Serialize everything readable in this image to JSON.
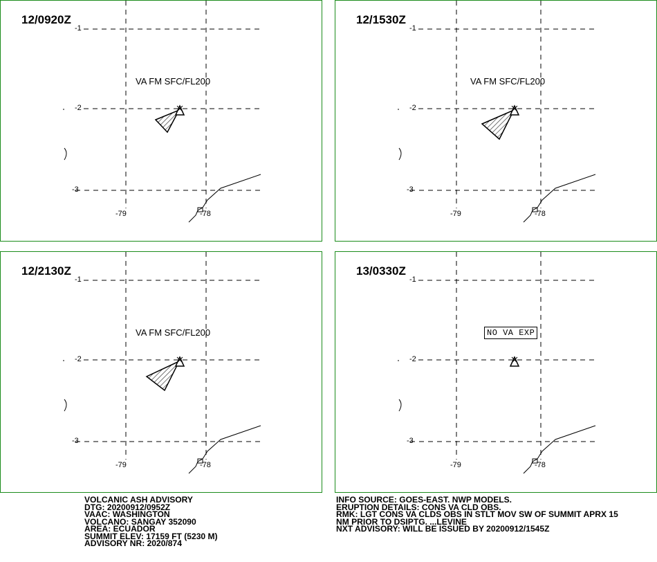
{
  "panels": [
    {
      "time": "12/0920Z",
      "label": "VA FM SFC/FL200",
      "cloud": true
    },
    {
      "time": "12/1530Z",
      "label": "VA FM SFC/FL200",
      "cloud": true
    },
    {
      "time": "12/2130Z",
      "label": "VA FM SFC/FL200",
      "cloud": true
    },
    {
      "time": "13/0330Z",
      "label": "NO VA EXP",
      "cloud": false
    }
  ],
  "grid": {
    "lat_labels": [
      "-1",
      "-2",
      "-3"
    ],
    "lon_labels": [
      "-79",
      "-78"
    ]
  },
  "advisory_left": [
    "VOLCANIC ASH ADVISORY",
    "DTG: 20200912/0952Z",
    "VAAC: WASHINGTON",
    "VOLCANO: SANGAY 352090",
    "AREA: ECUADOR",
    "SUMMIT ELEV: 17159 FT (5230 M)",
    "ADVISORY NR: 2020/874"
  ],
  "advisory_right": [
    "INFO SOURCE: GOES-EAST. NWP MODELS.",
    "ERUPTION DETAILS: CONS VA CLD OBS.",
    "RMK: LGT CONS VA CLDS OBS IN STLT MOV SW OF SUMMIT APRX 15",
    "NM PRIOR TO DSIPTG. ...LEVINE",
    "NXT ADVISORY: WILL BE ISSUED BY 20200912/1545Z"
  ],
  "colors": {
    "border": "#1a8c1a",
    "ink": "#000000"
  }
}
